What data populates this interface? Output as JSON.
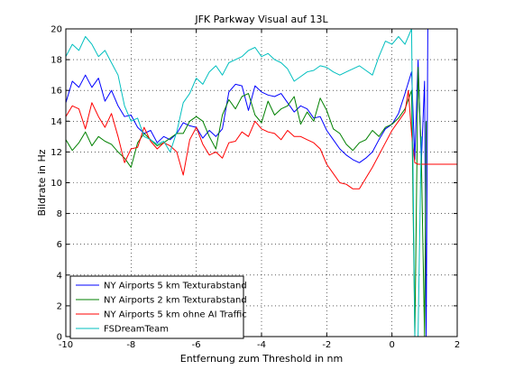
{
  "chart_data": {
    "type": "line",
    "title": "JFK Parkway Visual auf 13L",
    "xlabel": "Entfernung zum Threshold in nm",
    "ylabel": "Bildrate in Hz",
    "xlim": [
      -10,
      2
    ],
    "ylim": [
      0,
      20
    ],
    "xticks": [
      -10,
      -8,
      -6,
      -4,
      -2,
      0,
      2
    ],
    "yticks": [
      0,
      2,
      4,
      6,
      8,
      10,
      12,
      14,
      16,
      18,
      20
    ],
    "grid": true,
    "legend_position": "bottom-left",
    "series": [
      {
        "name": "NY Airports 5 km Texturabstand",
        "color": "#0000ff",
        "points": [
          [
            -10,
            15.2
          ],
          [
            -9.8,
            16.6
          ],
          [
            -9.6,
            16.2
          ],
          [
            -9.4,
            17.0
          ],
          [
            -9.2,
            16.2
          ],
          [
            -9.0,
            16.8
          ],
          [
            -8.8,
            15.3
          ],
          [
            -8.6,
            16.0
          ],
          [
            -8.4,
            15.0
          ],
          [
            -8.2,
            14.3
          ],
          [
            -8.0,
            14.4
          ],
          [
            -7.8,
            13.6
          ],
          [
            -7.6,
            13.2
          ],
          [
            -7.4,
            13.4
          ],
          [
            -7.2,
            12.6
          ],
          [
            -7.0,
            13.0
          ],
          [
            -6.8,
            12.8
          ],
          [
            -6.6,
            13.2
          ],
          [
            -6.4,
            13.9
          ],
          [
            -6.2,
            13.7
          ],
          [
            -6.0,
            13.6
          ],
          [
            -5.8,
            12.9
          ],
          [
            -5.6,
            13.4
          ],
          [
            -5.4,
            13.0
          ],
          [
            -5.2,
            13.5
          ],
          [
            -5.0,
            15.9
          ],
          [
            -4.8,
            16.4
          ],
          [
            -4.6,
            16.3
          ],
          [
            -4.4,
            14.7
          ],
          [
            -4.2,
            16.3
          ],
          [
            -4.0,
            15.9
          ],
          [
            -3.8,
            15.7
          ],
          [
            -3.6,
            15.6
          ],
          [
            -3.4,
            15.8
          ],
          [
            -3.2,
            15.2
          ],
          [
            -3.0,
            14.6
          ],
          [
            -2.8,
            15.0
          ],
          [
            -2.6,
            14.8
          ],
          [
            -2.4,
            14.2
          ],
          [
            -2.2,
            14.3
          ],
          [
            -2.0,
            13.4
          ],
          [
            -1.8,
            12.8
          ],
          [
            -1.6,
            12.2
          ],
          [
            -1.4,
            11.8
          ],
          [
            -1.2,
            11.5
          ],
          [
            -1.0,
            11.3
          ],
          [
            -0.8,
            11.6
          ],
          [
            -0.6,
            12.0
          ],
          [
            -0.4,
            12.8
          ],
          [
            -0.2,
            13.5
          ],
          [
            0.0,
            13.8
          ],
          [
            0.2,
            14.5
          ],
          [
            0.4,
            15.8
          ],
          [
            0.6,
            17.2
          ],
          [
            0.7,
            11.5
          ],
          [
            0.8,
            18.0
          ],
          [
            0.9,
            11.3
          ],
          [
            1.0,
            16.6
          ],
          [
            1.05,
            0.0
          ],
          [
            1.1,
            20.0
          ],
          [
            1.15,
            20.0
          ]
        ]
      },
      {
        "name": "NY Airports 2 km Texturabstand",
        "color": "#008000",
        "points": [
          [
            -10,
            12.8
          ],
          [
            -9.8,
            12.1
          ],
          [
            -9.6,
            12.6
          ],
          [
            -9.4,
            13.3
          ],
          [
            -9.2,
            12.4
          ],
          [
            -9.0,
            13.0
          ],
          [
            -8.8,
            12.7
          ],
          [
            -8.6,
            12.5
          ],
          [
            -8.4,
            12.0
          ],
          [
            -8.2,
            11.6
          ],
          [
            -8.0,
            11.0
          ],
          [
            -7.8,
            12.6
          ],
          [
            -7.6,
            13.2
          ],
          [
            -7.4,
            12.8
          ],
          [
            -7.2,
            12.4
          ],
          [
            -7.0,
            12.6
          ],
          [
            -6.8,
            12.9
          ],
          [
            -6.6,
            13.2
          ],
          [
            -6.4,
            13.2
          ],
          [
            -6.2,
            14.0
          ],
          [
            -6.0,
            14.3
          ],
          [
            -5.8,
            14.0
          ],
          [
            -5.6,
            13.0
          ],
          [
            -5.4,
            12.2
          ],
          [
            -5.2,
            14.4
          ],
          [
            -5.0,
            15.4
          ],
          [
            -4.8,
            14.8
          ],
          [
            -4.6,
            15.6
          ],
          [
            -4.4,
            15.8
          ],
          [
            -4.2,
            14.4
          ],
          [
            -4.0,
            13.9
          ],
          [
            -3.8,
            15.3
          ],
          [
            -3.6,
            14.4
          ],
          [
            -3.4,
            14.8
          ],
          [
            -3.2,
            15.0
          ],
          [
            -3.0,
            15.6
          ],
          [
            -2.8,
            13.8
          ],
          [
            -2.6,
            14.6
          ],
          [
            -2.4,
            14.0
          ],
          [
            -2.2,
            15.5
          ],
          [
            -2.0,
            14.7
          ],
          [
            -1.8,
            13.5
          ],
          [
            -1.6,
            13.2
          ],
          [
            -1.4,
            12.5
          ],
          [
            -1.2,
            12.1
          ],
          [
            -1.0,
            12.6
          ],
          [
            -0.8,
            12.8
          ],
          [
            -0.6,
            13.4
          ],
          [
            -0.4,
            13.0
          ],
          [
            -0.2,
            13.6
          ],
          [
            0.0,
            13.8
          ],
          [
            0.2,
            14.2
          ],
          [
            0.4,
            14.8
          ],
          [
            0.6,
            16.0
          ],
          [
            0.7,
            0.0
          ],
          [
            0.8,
            17.5
          ],
          [
            0.9,
            11.8
          ],
          [
            1.0,
            0.0
          ],
          [
            1.05,
            14.0
          ]
        ]
      },
      {
        "name": "NY Airports 5 km ohne AI Traffic",
        "color": "#ff0000",
        "points": [
          [
            -10,
            14.3
          ],
          [
            -9.8,
            15.0
          ],
          [
            -9.6,
            14.8
          ],
          [
            -9.4,
            13.5
          ],
          [
            -9.2,
            15.2
          ],
          [
            -9.0,
            14.3
          ],
          [
            -8.8,
            13.6
          ],
          [
            -8.6,
            14.5
          ],
          [
            -8.4,
            13.0
          ],
          [
            -8.2,
            11.3
          ],
          [
            -8.0,
            12.2
          ],
          [
            -7.8,
            12.3
          ],
          [
            -7.6,
            13.6
          ],
          [
            -7.4,
            12.7
          ],
          [
            -7.2,
            12.2
          ],
          [
            -7.0,
            12.6
          ],
          [
            -6.8,
            12.4
          ],
          [
            -6.6,
            12.0
          ],
          [
            -6.4,
            10.5
          ],
          [
            -6.2,
            12.8
          ],
          [
            -6.0,
            13.6
          ],
          [
            -5.8,
            12.5
          ],
          [
            -5.6,
            11.8
          ],
          [
            -5.4,
            12.0
          ],
          [
            -5.2,
            11.6
          ],
          [
            -5.0,
            12.6
          ],
          [
            -4.8,
            12.7
          ],
          [
            -4.6,
            13.3
          ],
          [
            -4.4,
            13.0
          ],
          [
            -4.2,
            14.0
          ],
          [
            -4.0,
            13.5
          ],
          [
            -3.8,
            13.3
          ],
          [
            -3.6,
            13.2
          ],
          [
            -3.4,
            12.8
          ],
          [
            -3.2,
            13.4
          ],
          [
            -3.0,
            13.0
          ],
          [
            -2.8,
            13.0
          ],
          [
            -2.6,
            12.8
          ],
          [
            -2.4,
            12.6
          ],
          [
            -2.2,
            12.2
          ],
          [
            -2.0,
            11.2
          ],
          [
            -1.8,
            10.6
          ],
          [
            -1.6,
            10.0
          ],
          [
            -1.4,
            9.9
          ],
          [
            -1.2,
            9.6
          ],
          [
            -1.0,
            9.6
          ],
          [
            -0.8,
            10.3
          ],
          [
            -0.6,
            11.0
          ],
          [
            -0.4,
            11.8
          ],
          [
            -0.2,
            12.6
          ],
          [
            0.0,
            13.4
          ],
          [
            0.2,
            14.0
          ],
          [
            0.4,
            14.6
          ],
          [
            0.5,
            16.0
          ],
          [
            0.6,
            13.2
          ],
          [
            0.7,
            11.3
          ],
          [
            0.8,
            11.2
          ],
          [
            1.0,
            11.2
          ],
          [
            1.5,
            11.2
          ],
          [
            2.0,
            11.2
          ]
        ]
      },
      {
        "name": "FSDreamTeam",
        "color": "#00bfbf",
        "points": [
          [
            -10,
            18.2
          ],
          [
            -9.8,
            19.0
          ],
          [
            -9.6,
            18.6
          ],
          [
            -9.4,
            19.5
          ],
          [
            -9.2,
            19.0
          ],
          [
            -9.0,
            18.2
          ],
          [
            -8.8,
            18.6
          ],
          [
            -8.6,
            17.8
          ],
          [
            -8.4,
            17.0
          ],
          [
            -8.2,
            15.0
          ],
          [
            -8.0,
            14.0
          ],
          [
            -7.8,
            14.2
          ],
          [
            -7.6,
            13.0
          ],
          [
            -7.4,
            12.8
          ],
          [
            -7.2,
            12.5
          ],
          [
            -7.0,
            12.7
          ],
          [
            -6.8,
            12.0
          ],
          [
            -6.6,
            13.3
          ],
          [
            -6.4,
            15.2
          ],
          [
            -6.2,
            15.8
          ],
          [
            -6.0,
            16.8
          ],
          [
            -5.8,
            16.4
          ],
          [
            -5.6,
            17.2
          ],
          [
            -5.4,
            17.6
          ],
          [
            -5.2,
            17.0
          ],
          [
            -5.0,
            17.8
          ],
          [
            -4.8,
            18.0
          ],
          [
            -4.6,
            18.2
          ],
          [
            -4.4,
            18.6
          ],
          [
            -4.2,
            18.8
          ],
          [
            -4.0,
            18.2
          ],
          [
            -3.8,
            18.4
          ],
          [
            -3.6,
            18.0
          ],
          [
            -3.4,
            17.8
          ],
          [
            -3.2,
            17.4
          ],
          [
            -3.0,
            16.6
          ],
          [
            -2.8,
            16.9
          ],
          [
            -2.6,
            17.2
          ],
          [
            -2.4,
            17.3
          ],
          [
            -2.2,
            17.6
          ],
          [
            -2.0,
            17.5
          ],
          [
            -1.8,
            17.2
          ],
          [
            -1.6,
            17.0
          ],
          [
            -1.4,
            17.2
          ],
          [
            -1.2,
            17.4
          ],
          [
            -1.0,
            17.6
          ],
          [
            -0.8,
            17.3
          ],
          [
            -0.6,
            17.0
          ],
          [
            -0.4,
            18.2
          ],
          [
            -0.2,
            19.2
          ],
          [
            0.0,
            19.0
          ],
          [
            0.2,
            19.5
          ],
          [
            0.4,
            19.0
          ],
          [
            0.6,
            20.0
          ],
          [
            0.7,
            0.0
          ],
          [
            0.8,
            0.0
          ],
          [
            0.9,
            13.0
          ]
        ]
      }
    ]
  }
}
